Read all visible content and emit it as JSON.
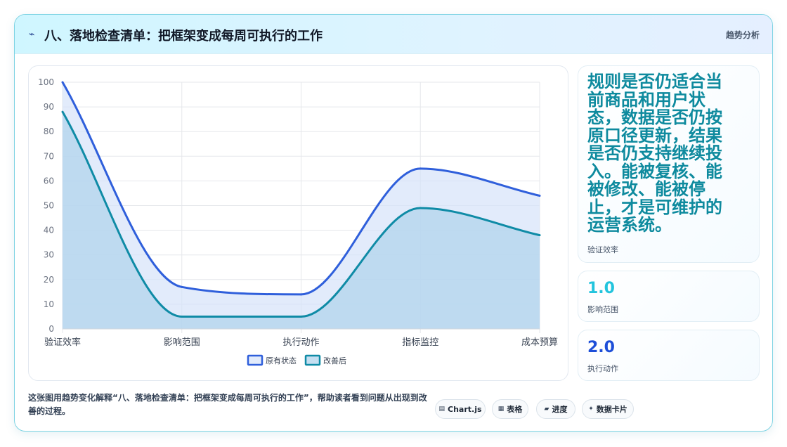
{
  "header": {
    "title_icon": "lightning-icon",
    "title": "八、落地检查清单：把框架变成每周可执行的工作",
    "tag": "趋势分析"
  },
  "chart_data": {
    "type": "area",
    "categories": [
      "验证效率",
      "影响范围",
      "执行动作",
      "指标监控",
      "成本预算"
    ],
    "series": [
      {
        "name": "原有状态",
        "values": [
          100,
          17,
          14,
          65,
          54
        ],
        "color": "#2f5fdb"
      },
      {
        "name": "改善后",
        "values": [
          88,
          5,
          5,
          49,
          38
        ],
        "color": "#0f8ba6"
      }
    ],
    "ylim": [
      0,
      100
    ],
    "yticks": [
      0,
      10,
      20,
      30,
      40,
      50,
      60,
      70,
      80,
      90,
      100
    ],
    "grid": true,
    "legend_position": "bottom"
  },
  "stats": {
    "s1": {
      "value": "规则是否仍适合当前商品和用户状态，数据是否仍按原口径更新，结果是否仍支持继续投入。能被复核、能被修改、能被停止，才是可维护的运营系统。",
      "label": "验证效率"
    },
    "s2": {
      "value": "1.0",
      "label": "影响范围"
    },
    "s3": {
      "value": "2.0",
      "label": "执行动作"
    }
  },
  "caption": "这张图用趋势变化解释“八、落地检查清单：把框架变成每周可执行的工作”，帮助读者看到问题从出现到改善的过程。",
  "chips": [
    {
      "icon": "▤",
      "label": "Chart.js"
    },
    {
      "icon": "▦",
      "label": "表格"
    },
    {
      "icon": "▰",
      "label": "进度"
    },
    {
      "icon": "✦",
      "label": "数据卡片"
    }
  ]
}
